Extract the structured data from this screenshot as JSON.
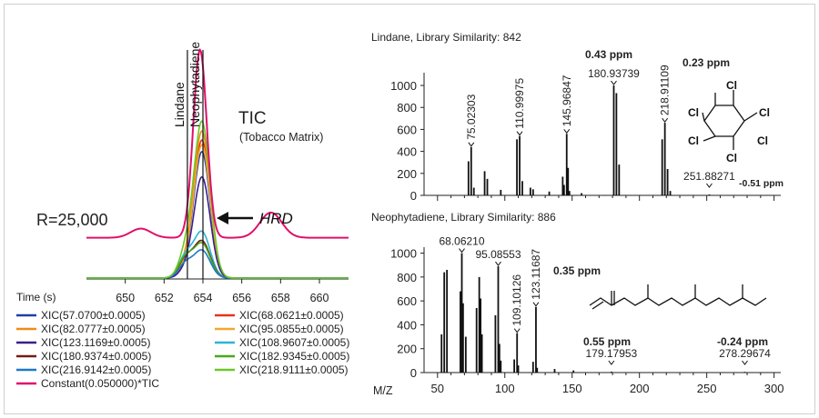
{
  "chart_data": [
    {
      "type": "line",
      "title": "TIC",
      "subtitle": "(Tobacco Matrix)",
      "resolution_label": "R=25,000",
      "arrow_label": "HRD",
      "xlabel": "Time (s)",
      "xlim": [
        648,
        661.5
      ],
      "xticks": [
        650,
        652,
        654,
        656,
        658,
        660
      ],
      "markers": [
        {
          "label": "Lindane",
          "x": 653.2
        },
        {
          "label": "Neophytadiene",
          "x": 654.0
        }
      ],
      "tic": {
        "name": "Constant(0.050000)*TIC",
        "color": "#e0106a",
        "baseline": 0.18,
        "peaks": [
          {
            "center": 653.85,
            "width": 0.8,
            "height": 0.82
          },
          {
            "center": 657.5,
            "width": 1.3,
            "height": 0.11
          },
          {
            "center": 650.8,
            "width": 1.2,
            "height": 0.04
          }
        ]
      },
      "series": [
        {
          "name": "XIC(57.0700±0.0005)",
          "color": "#1f3fa8",
          "height": 0.55,
          "small": 0.04
        },
        {
          "name": "XIC(68.0621±0.0005)",
          "color": "#e8321e",
          "height": 0.6,
          "small": 0.05
        },
        {
          "name": "XIC(82.0777±0.0005)",
          "color": "#f08c14",
          "height": 0.64,
          "small": 0.05
        },
        {
          "name": "XIC(95.0855±0.0005)",
          "color": "#f0a830",
          "height": 0.58,
          "small": 0.04
        },
        {
          "name": "XIC(123.1169±0.0005)",
          "color": "#3a1e8c",
          "height": 0.44,
          "small": 0.03
        },
        {
          "name": "XIC(108.9607±0.0005)",
          "color": "#2fb4d4",
          "height": 0.2,
          "small": 0.09
        },
        {
          "name": "XIC(180.9374±0.0005)",
          "color": "#6e1e14",
          "height": 0.16,
          "small": 0.08
        },
        {
          "name": "XIC(182.9345±0.0005)",
          "color": "#48a818",
          "height": 0.15,
          "small": 0.085
        },
        {
          "name": "XIC(216.9142±0.0005)",
          "color": "#1e78c8",
          "height": 0.12,
          "small": 0.06
        },
        {
          "name": "XIC(218.9111±0.0005)",
          "color": "#6cc828",
          "height": 0.68,
          "small": 0.1
        }
      ]
    },
    {
      "type": "bar",
      "title": "Lindane, Library Similarity: 842",
      "ylim": [
        0,
        1050
      ],
      "yticks": [
        0,
        200,
        400,
        600,
        800,
        1000
      ],
      "xlim": [
        40,
        305
      ],
      "peaks": [
        {
          "x": 75.02303,
          "y": 440
        },
        {
          "x": 73.0,
          "y": 310
        },
        {
          "x": 77.0,
          "y": 70
        },
        {
          "x": 85.0,
          "y": 220
        },
        {
          "x": 87.0,
          "y": 150
        },
        {
          "x": 97.0,
          "y": 50
        },
        {
          "x": 109.0,
          "y": 510
        },
        {
          "x": 110.99975,
          "y": 540
        },
        {
          "x": 113.0,
          "y": 130
        },
        {
          "x": 119.0,
          "y": 70
        },
        {
          "x": 121.0,
          "y": 55
        },
        {
          "x": 133.0,
          "y": 35
        },
        {
          "x": 143.0,
          "y": 170
        },
        {
          "x": 144.0,
          "y": 95
        },
        {
          "x": 145.96847,
          "y": 560
        },
        {
          "x": 147.0,
          "y": 250
        },
        {
          "x": 148.0,
          "y": 40
        },
        {
          "x": 157.0,
          "y": 20
        },
        {
          "x": 180.93739,
          "y": 1000
        },
        {
          "x": 182.9,
          "y": 930
        },
        {
          "x": 184.9,
          "y": 280
        },
        {
          "x": 216.9,
          "y": 510
        },
        {
          "x": 218.91109,
          "y": 660
        },
        {
          "x": 220.9,
          "y": 240
        },
        {
          "x": 222.9,
          "y": 40
        },
        {
          "x": 251.88271,
          "y": 8
        }
      ],
      "annotations": [
        {
          "label": "75.02303",
          "x": 75.02303,
          "y": 440,
          "rotate": true
        },
        {
          "label": "110.99975",
          "x": 110.99975,
          "y": 540,
          "rotate": true
        },
        {
          "label": "145.96847",
          "x": 145.96847,
          "y": 560,
          "rotate": true
        },
        {
          "label": "180.93739",
          "x": 180.93739,
          "y": 1000,
          "rotate": false
        },
        {
          "label": "218.91109",
          "x": 218.91109,
          "y": 660,
          "rotate": true
        },
        {
          "label": "251.88271",
          "x": 251.88271,
          "y": 0,
          "rotate": false
        }
      ],
      "ppm_labels": [
        "0.43 ppm",
        "0.23 ppm",
        "-0.51 ppm"
      ],
      "structure_atoms": [
        "Cl",
        "Cl",
        "Cl",
        "Cl",
        "Cl",
        "Cl"
      ]
    },
    {
      "type": "bar",
      "title": "Neophytadiene, Library Similarity: 886",
      "xlabel": "M/Z",
      "ylim": [
        0,
        1050
      ],
      "yticks": [
        0,
        200,
        400,
        600,
        800,
        1000
      ],
      "xlim": [
        40,
        305
      ],
      "xticks": [
        50,
        100,
        150,
        200,
        250,
        300
      ],
      "peaks": [
        {
          "x": 55.0,
          "y": 840
        },
        {
          "x": 57.0,
          "y": 860
        },
        {
          "x": 53.0,
          "y": 320
        },
        {
          "x": 67.0,
          "y": 680
        },
        {
          "x": 68.0621,
          "y": 1000
        },
        {
          "x": 69.0,
          "y": 580
        },
        {
          "x": 71.0,
          "y": 300
        },
        {
          "x": 79.0,
          "y": 540
        },
        {
          "x": 81.0,
          "y": 800
        },
        {
          "x": 82.0,
          "y": 620
        },
        {
          "x": 83.0,
          "y": 320
        },
        {
          "x": 93.0,
          "y": 480
        },
        {
          "x": 95.08553,
          "y": 890
        },
        {
          "x": 96.0,
          "y": 240
        },
        {
          "x": 97.0,
          "y": 100
        },
        {
          "x": 107.0,
          "y": 110
        },
        {
          "x": 109.10126,
          "y": 330
        },
        {
          "x": 110.0,
          "y": 60
        },
        {
          "x": 121.0,
          "y": 90
        },
        {
          "x": 123.11687,
          "y": 550
        },
        {
          "x": 124.0,
          "y": 40
        },
        {
          "x": 137.0,
          "y": 30
        },
        {
          "x": 151.0,
          "y": 18
        },
        {
          "x": 179.17953,
          "y": 8
        },
        {
          "x": 278.29674,
          "y": 6
        }
      ],
      "annotations": [
        {
          "label": "68.06210",
          "x": 68.0621,
          "y": 1000,
          "rotate": false
        },
        {
          "label": "95.08553",
          "x": 95.08553,
          "y": 890,
          "rotate": false
        },
        {
          "label": "109.10126",
          "x": 109.10126,
          "y": 330,
          "rotate": true
        },
        {
          "label": "123.11687",
          "x": 123.11687,
          "y": 550,
          "rotate": true
        },
        {
          "label": "179.17953",
          "x": 179.17953,
          "y": 0,
          "rotate": false
        },
        {
          "label": "278.29674",
          "x": 278.29674,
          "y": 0,
          "rotate": false
        }
      ],
      "ppm_labels": [
        "0.35 ppm",
        "0.55 ppm",
        "-0.24 ppm"
      ]
    }
  ]
}
